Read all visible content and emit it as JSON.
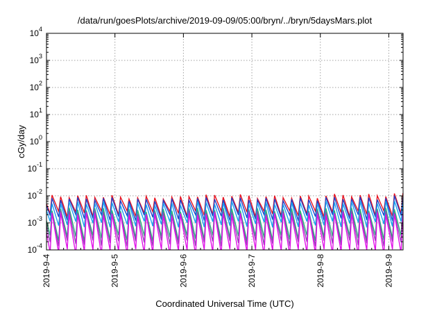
{
  "chart_data": {
    "type": "line",
    "title": "/data/run/goesPlots/archive/2019-09-09/05:00/bryn/../bryn/5daysMars.plot",
    "xlabel": "Coordinated Universal Time (UTC)",
    "ylabel": "cGy/day",
    "yscale": "log",
    "ylim": [
      0.0001,
      10000
    ],
    "xlim": [
      "2019-09-04 00:00",
      "2019-09-09 05:00"
    ],
    "y_ticks": [
      {
        "base": "10",
        "exp": "-4"
      },
      {
        "base": "10",
        "exp": "-3"
      },
      {
        "base": "10",
        "exp": "-2"
      },
      {
        "base": "10",
        "exp": "-1"
      },
      {
        "base": "10",
        "exp": "0"
      },
      {
        "base": "10",
        "exp": "1"
      },
      {
        "base": "10",
        "exp": "2"
      },
      {
        "base": "10",
        "exp": "3"
      },
      {
        "base": "10",
        "exp": "4"
      }
    ],
    "x_ticks": [
      "2019-9-4",
      "2019-9-5",
      "2019-9-6",
      "2019-9-7",
      "2019-9-8",
      "2019-9-9"
    ],
    "grid": true,
    "sawtooth_period_hours": 3,
    "series": [
      {
        "color": "#e8121e",
        "peak": 0.0095,
        "trough": 0.0022,
        "peak_variation": [
          1.0,
          0.9,
          1.05,
          0.95,
          1.1,
          1.2
        ]
      },
      {
        "color": "#2040c8",
        "peak": 0.0078,
        "trough": 0.0016,
        "peak_variation": [
          1.0,
          0.9,
          1.0,
          0.95,
          1.05,
          1.15
        ]
      },
      {
        "color": "#18a0f0",
        "peak": 0.0055,
        "trough": 0.0009,
        "peak_variation": [
          1.0,
          0.9,
          1.0,
          0.95,
          1.05,
          1.1
        ]
      },
      {
        "color": "#2ab27a",
        "peak": 0.0032,
        "trough": 0.00028,
        "peak_variation": [
          1.0,
          0.9,
          1.0,
          0.95,
          1.0,
          1.05
        ]
      },
      {
        "color": "#8a4ab0",
        "peak": 0.0026,
        "trough": 0.00018,
        "peak_variation": [
          1.0,
          0.9,
          1.0,
          0.95,
          1.0,
          1.05
        ]
      },
      {
        "color": "#e010e8",
        "peak": 0.0022,
        "trough": 8.5e-05,
        "peak_variation": [
          1.0,
          0.9,
          1.0,
          0.95,
          1.0,
          1.05
        ]
      }
    ]
  }
}
